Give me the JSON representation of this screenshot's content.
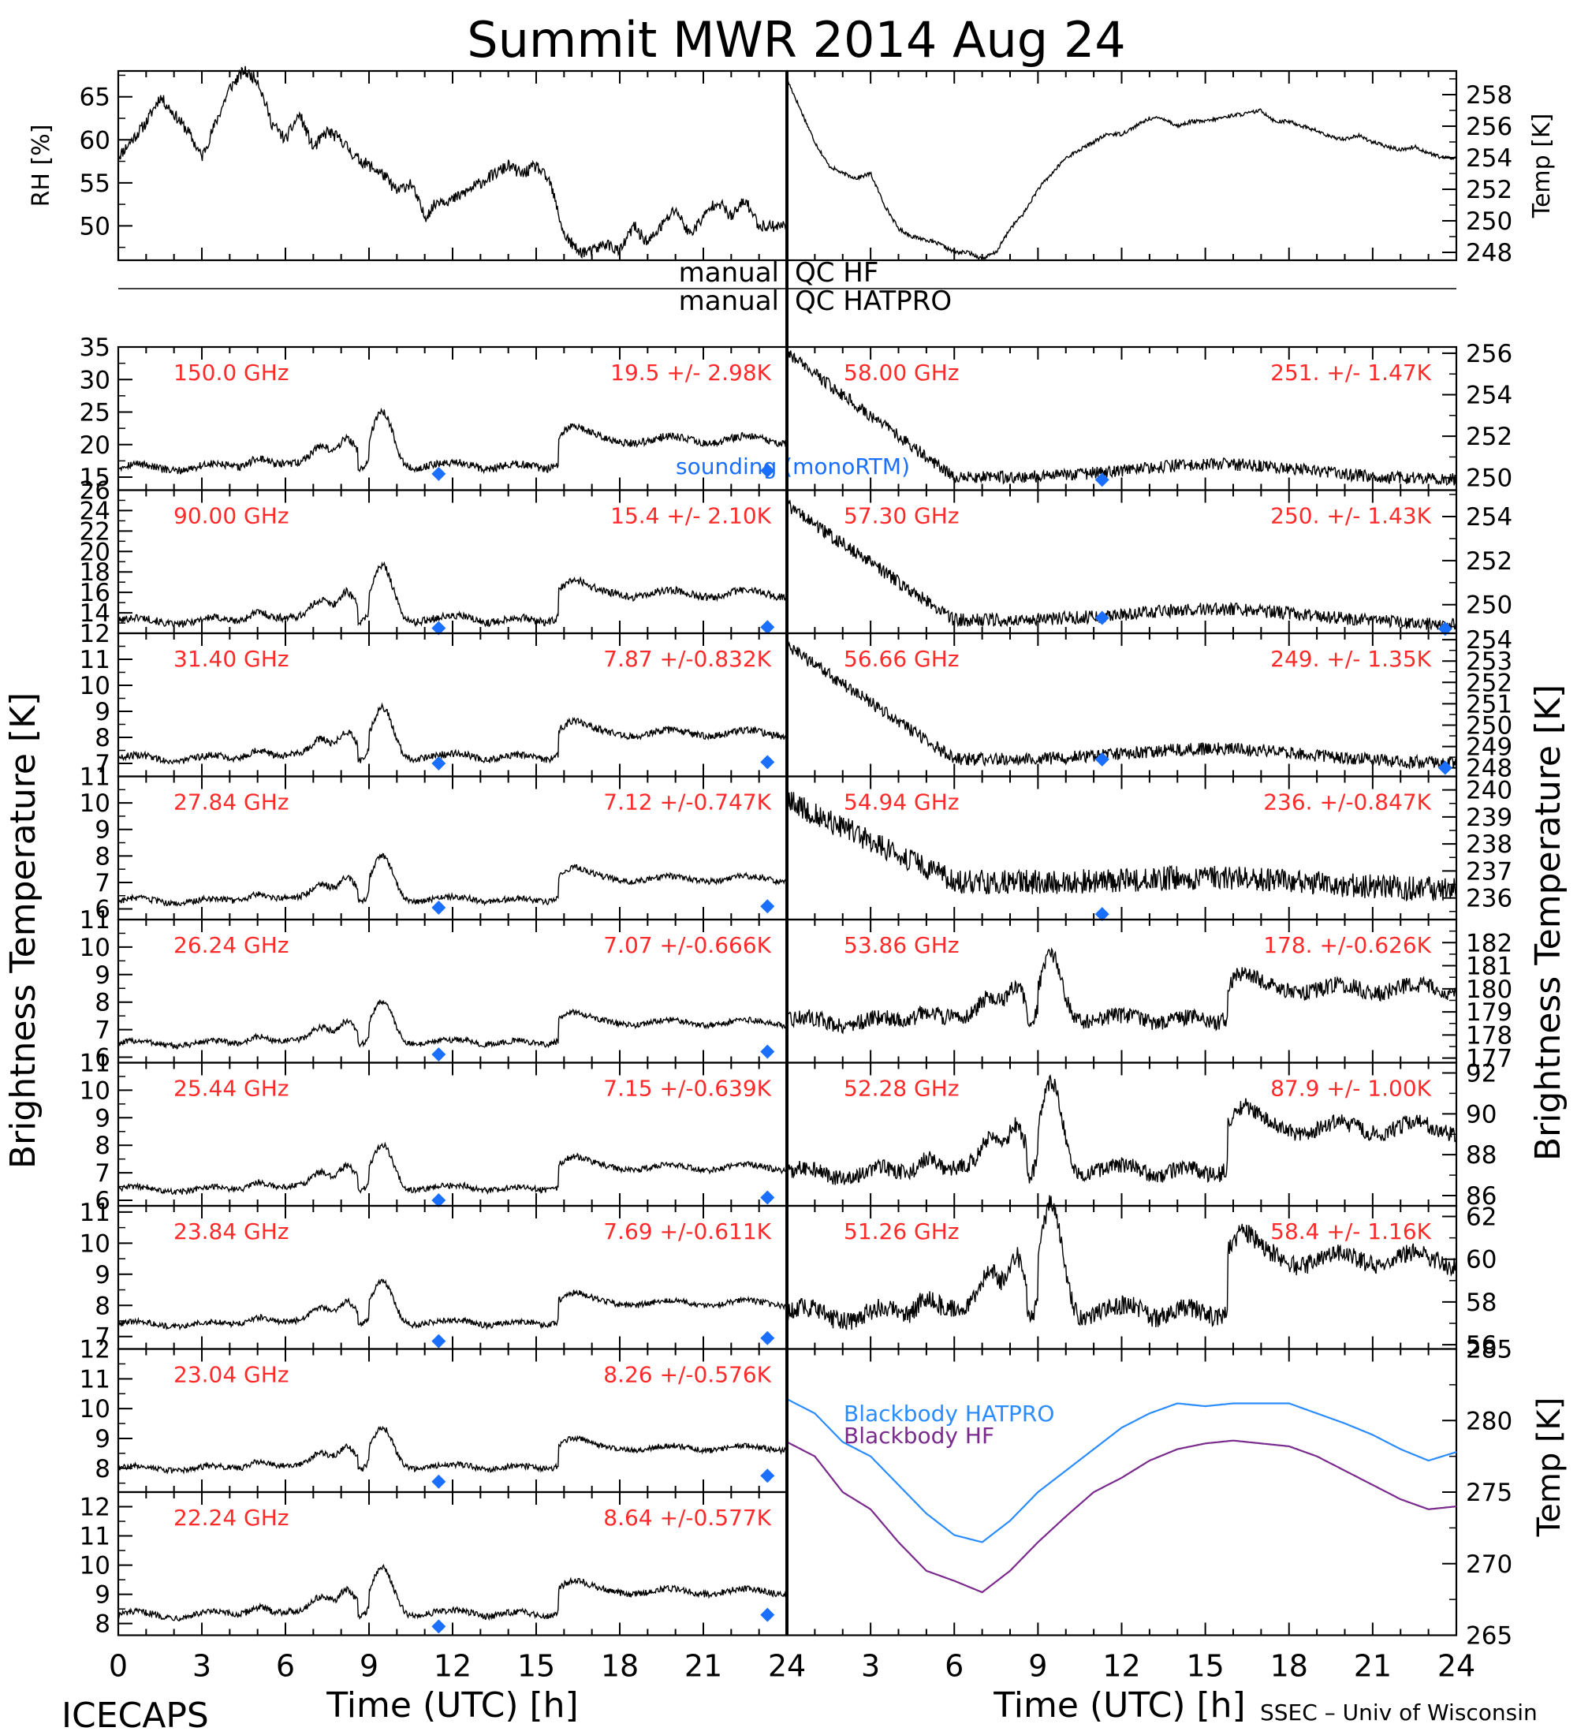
{
  "title": "Summit MWR 2014 Aug 24",
  "footer_left": "ICECAPS",
  "footer_right": "SSEC – Univ of Wisconsin",
  "colors": {
    "label": "#ff2a2a",
    "sounding": "#1a6fff",
    "hatpro": "#2a8cff",
    "hf": "#7a2a8c",
    "trace": "#000000"
  },
  "qc": {
    "hf_left": "manual",
    "hf_right": "QC HF",
    "hatpro_left": "manual",
    "hatpro_right": "QC HATPRO"
  },
  "chart_data": {
    "type": "line",
    "x_ticks": [
      "0",
      "3",
      "6",
      "9",
      "12",
      "15",
      "18",
      "21",
      "24"
    ],
    "xlabel": "Time (UTC) [h]",
    "left_ylabel": "Brightness Temperature [K]",
    "right_ylabel": "Brightness Temperature [K]",
    "sounding_legend": "sounding (monoRTM)",
    "met": {
      "rh": {
        "ylabel": "RH [%]",
        "ylim": [
          46,
          68
        ],
        "ticks": [
          50,
          55,
          60,
          65
        ],
        "x": [
          0,
          0.5,
          1,
          1.5,
          2,
          2.5,
          3,
          3.5,
          4,
          4.5,
          5,
          5.5,
          6,
          6.5,
          7,
          7.5,
          8,
          8.5,
          9,
          9.5,
          10,
          10.5,
          11,
          11.5,
          12,
          12.5,
          13,
          13.5,
          14,
          14.5,
          15,
          15.5,
          16,
          16.5,
          17,
          17.5,
          18,
          18.5,
          19,
          19.5,
          20,
          20.5,
          21,
          21.5,
          22,
          22.5,
          23
        ],
        "values": [
          58,
          60,
          62,
          65,
          63,
          61,
          58,
          62,
          66,
          68,
          67,
          62,
          60,
          63,
          59,
          61,
          60,
          58,
          57,
          56,
          54,
          55,
          51,
          53,
          53,
          54,
          55,
          56,
          57,
          56,
          57,
          55,
          49,
          47,
          47,
          48,
          47,
          50,
          48,
          50,
          52,
          49,
          51,
          53,
          51,
          53,
          50
        ]
      },
      "temp": {
        "ylabel": "Temp [K]",
        "ylim": [
          247.5,
          259.5
        ],
        "ticks": [
          248,
          250,
          252,
          254,
          256,
          258
        ],
        "x": [
          0,
          0.5,
          1,
          1.5,
          2,
          2.5,
          3,
          3.5,
          4,
          4.5,
          5,
          5.5,
          6,
          6.5,
          7,
          7.5,
          8,
          8.5,
          9,
          9.5,
          10,
          10.5,
          11,
          11.5,
          12,
          12.5,
          13,
          13.5,
          14,
          14.5,
          15,
          15.5,
          16,
          16.5,
          17,
          17.5,
          18,
          18.5,
          19,
          19.5,
          20,
          20.5,
          21,
          21.5,
          22,
          22.5,
          23,
          23.5,
          24
        ],
        "values": [
          259,
          257,
          255,
          253.5,
          253,
          252.7,
          253,
          251,
          249.5,
          249,
          248.8,
          248.5,
          248,
          248,
          247.6,
          248,
          249.5,
          250.5,
          252,
          253,
          254,
          254.5,
          255,
          255.5,
          255.5,
          256,
          256.5,
          256.5,
          256,
          256.3,
          256.3,
          256.5,
          256.7,
          256.8,
          257,
          256.3,
          256.3,
          256,
          255.7,
          255.3,
          255.2,
          255.4,
          255,
          254.7,
          254.5,
          254.7,
          254.3,
          254,
          254
        ]
      }
    },
    "left_panels": [
      {
        "freq": "150.0 GHz",
        "stats": "19.5 +/-  2.98K",
        "ylim": [
          13,
          35
        ],
        "ticks": [
          15,
          20,
          25,
          30,
          35
        ],
        "base": 16.5,
        "amp": 1.06,
        "soundings": [
          [
            11.5,
            15.5
          ],
          [
            23.3,
            16
          ]
        ]
      },
      {
        "freq": "90.00 GHz",
        "stats": "15.4 +/-  2.10K",
        "ylim": [
          12,
          26
        ],
        "ticks": [
          12,
          14,
          16,
          18,
          20,
          22,
          24,
          26
        ],
        "base": 13.2,
        "amp": 0.67,
        "soundings": [
          [
            11.5,
            12.5
          ],
          [
            23.3,
            12.6
          ]
        ]
      },
      {
        "freq": "31.40 GHz",
        "stats": "7.87 +/-0.832K",
        "ylim": [
          6.5,
          12
        ],
        "ticks": [
          7,
          8,
          9,
          10,
          11
        ],
        "base": 7.2,
        "amp": 0.24,
        "soundings": [
          [
            11.5,
            7.0
          ],
          [
            23.3,
            7.05
          ]
        ]
      },
      {
        "freq": "27.84 GHz",
        "stats": "7.12 +/-0.747K",
        "ylim": [
          5.6,
          11
        ],
        "ticks": [
          6,
          7,
          8,
          9,
          10,
          11
        ],
        "base": 6.3,
        "amp": 0.21,
        "soundings": [
          [
            11.5,
            6.05
          ],
          [
            23.3,
            6.1
          ]
        ]
      },
      {
        "freq": "26.24 GHz",
        "stats": "7.07 +/-0.666K",
        "ylim": [
          5.8,
          11
        ],
        "ticks": [
          6,
          7,
          8,
          9,
          10,
          11
        ],
        "base": 6.5,
        "amp": 0.19,
        "soundings": [
          [
            11.5,
            6.1
          ],
          [
            23.3,
            6.2
          ]
        ]
      },
      {
        "freq": "25.44 GHz",
        "stats": "7.15 +/-0.639K",
        "ylim": [
          5.8,
          11
        ],
        "ticks": [
          6,
          7,
          8,
          9,
          10,
          11
        ],
        "base": 6.4,
        "amp": 0.2,
        "soundings": [
          [
            11.5,
            6.0
          ],
          [
            23.3,
            6.1
          ]
        ]
      },
      {
        "freq": "23.84 GHz",
        "stats": "7.69 +/-0.611K",
        "ylim": [
          6.6,
          11.2
        ],
        "ticks": [
          7,
          8,
          9,
          10,
          11
        ],
        "base": 7.4,
        "amp": 0.17,
        "soundings": [
          [
            11.5,
            6.85
          ],
          [
            23.3,
            6.95
          ]
        ]
      },
      {
        "freq": "23.04 GHz",
        "stats": "8.26 +/-0.576K",
        "ylim": [
          7.2,
          12
        ],
        "ticks": [
          8,
          9,
          10,
          11,
          12
        ],
        "base": 8.0,
        "amp": 0.17,
        "soundings": [
          [
            11.5,
            7.55
          ],
          [
            23.3,
            7.75
          ]
        ]
      },
      {
        "freq": "22.24 GHz",
        "stats": "8.64 +/-0.577K",
        "ylim": [
          7.6,
          12.5
        ],
        "ticks": [
          8,
          9,
          10,
          11,
          12
        ],
        "base": 8.3,
        "amp": 0.2,
        "soundings": [
          [
            11.5,
            7.9
          ],
          [
            23.3,
            8.3
          ]
        ]
      }
    ],
    "right_panels": [
      {
        "freq": "58.00 GHz",
        "stats": "251. +/- 1.47K",
        "ylim": [
          249.4,
          256.3
        ],
        "ticks": [
          250,
          252,
          254,
          256
        ],
        "shape": "decay",
        "start": 256,
        "base": 250,
        "end": 249.9,
        "hump": 0.7,
        "noise": 0.3,
        "soundings": [
          [
            11.3,
            249.9
          ]
        ]
      },
      {
        "freq": "57.30 GHz",
        "stats": "250. +/- 1.43K",
        "ylim": [
          248.7,
          255.2
        ],
        "ticks": [
          250,
          252,
          254
        ],
        "shape": "decay",
        "start": 254.5,
        "base": 249.3,
        "end": 249.1,
        "hump": 0.6,
        "noise": 0.3,
        "soundings": [
          [
            11.3,
            249.4
          ],
          [
            23.6,
            248.9
          ]
        ]
      },
      {
        "freq": "56.66 GHz",
        "stats": "249. +/- 1.35K",
        "ylim": [
          247.6,
          254.3
        ],
        "ticks": [
          248,
          249,
          250,
          251,
          252,
          253,
          254
        ],
        "shape": "decay",
        "start": 253.7,
        "base": 248.4,
        "end": 248.2,
        "hump": 0.6,
        "noise": 0.3,
        "soundings": [
          [
            11.3,
            248.4
          ],
          [
            23.6,
            248.0
          ]
        ]
      },
      {
        "freq": "54.94 GHz",
        "stats": "236. +/-0.847K",
        "ylim": [
          235.2,
          240.5
        ],
        "ticks": [
          236,
          237,
          238,
          239,
          240
        ],
        "shape": "decay",
        "start": 239.6,
        "base": 236.6,
        "end": 236.3,
        "hump": 0.3,
        "noise": 0.45,
        "soundings": [
          [
            11.3,
            235.4
          ]
        ]
      },
      {
        "freq": "53.86 GHz",
        "stats": "178. +/-0.626K",
        "ylim": [
          176.8,
          183
        ],
        "ticks": [
          177,
          178,
          179,
          180,
          181,
          182
        ],
        "shape": "wiggle",
        "base": 178.6,
        "amp": 0.35,
        "noise": 0.35,
        "soundings": []
      },
      {
        "freq": "52.28 GHz",
        "stats": "87.9 +/- 1.00K",
        "ylim": [
          85.5,
          92.5
        ],
        "ticks": [
          86,
          88,
          90,
          92
        ],
        "shape": "wiggle",
        "base": 87.1,
        "amp": 0.55,
        "noise": 0.4,
        "soundings": []
      },
      {
        "freq": "51.26 GHz",
        "stats": "58.4 +/- 1.16K",
        "ylim": [
          55.8,
          62.5
        ],
        "ticks": [
          56,
          58,
          60,
          62
        ],
        "shape": "wiggle",
        "base": 57.4,
        "amp": 0.65,
        "noise": 0.45,
        "soundings": []
      }
    ],
    "blackbody": {
      "ylabel": "Temp [K]",
      "ylim": [
        265,
        285
      ],
      "ticks": [
        265,
        270,
        275,
        280,
        285
      ],
      "hatpro_label": "Blackbody HATPRO",
      "hf_label": "Blackbody HF",
      "x": [
        0,
        1,
        2,
        3,
        4,
        5,
        6,
        7,
        8,
        9,
        10,
        11,
        12,
        13,
        14,
        15,
        16,
        17,
        18,
        19,
        20,
        21,
        22,
        23,
        24
      ],
      "hatpro": [
        281.5,
        280.5,
        278.5,
        277.5,
        275.5,
        273.5,
        272,
        271.5,
        273,
        275,
        276.5,
        278,
        279.5,
        280.5,
        281.2,
        281.0,
        281.2,
        281.2,
        281.2,
        280.5,
        279.8,
        279,
        278,
        277.2,
        277.8
      ],
      "hf": [
        278.5,
        277.5,
        275,
        273.8,
        271.5,
        269.5,
        268.8,
        268,
        269.5,
        271.5,
        273.3,
        275,
        276,
        277.2,
        278,
        278.4,
        278.6,
        278.4,
        278.2,
        277.5,
        276.5,
        275.5,
        274.5,
        273.8,
        274
      ]
    }
  }
}
